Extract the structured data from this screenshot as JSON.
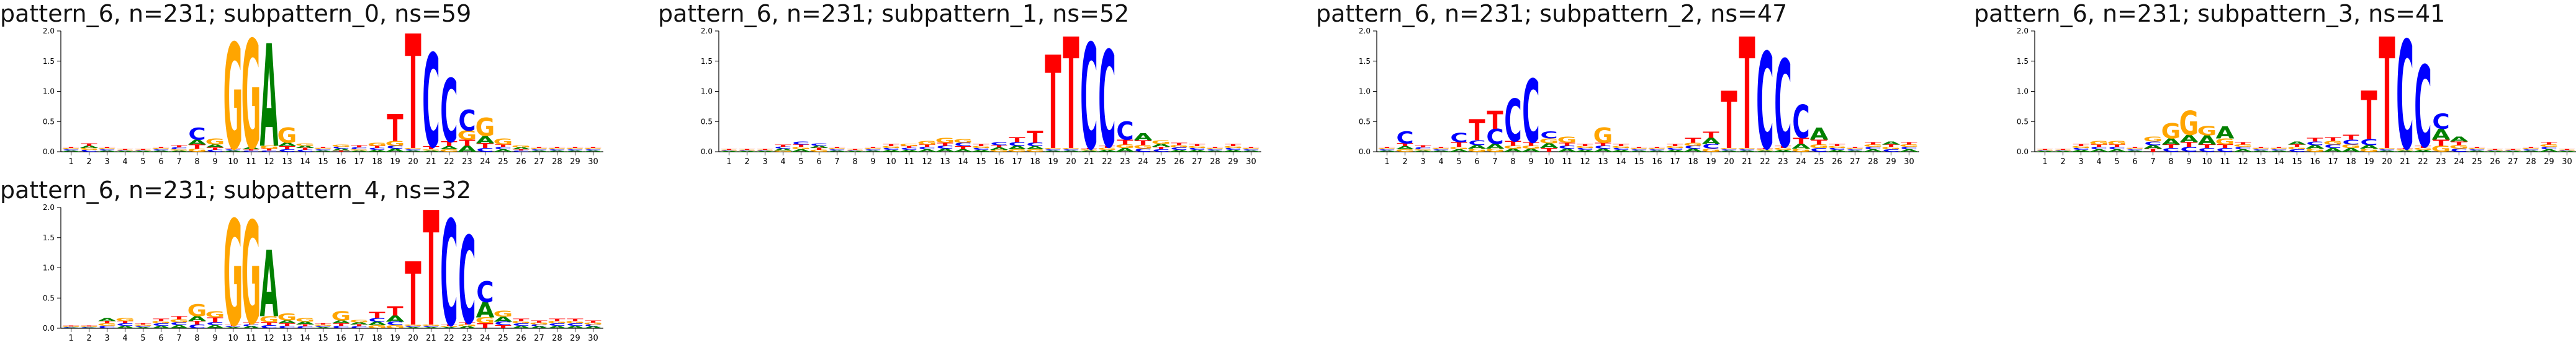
{
  "colors": {
    "A": "#008000",
    "C": "#0000ff",
    "G": "#ffa500",
    "T": "#ff0000"
  },
  "chart_data": [
    {
      "type": "sequence_logo",
      "title": "pattern_6, n=231; subpattern_0, ns=59",
      "ylim": [
        0,
        2.0
      ],
      "yticks": [
        "0.0",
        "0.5",
        "1.0",
        "1.5",
        "2.0"
      ],
      "xticks": [
        "1",
        "2",
        "3",
        "4",
        "5",
        "6",
        "7",
        "8",
        "9",
        "10",
        "11",
        "12",
        "13",
        "14",
        "15",
        "16",
        "17",
        "18",
        "19",
        "20",
        "21",
        "22",
        "23",
        "24",
        "25",
        "26",
        "27",
        "28",
        "29",
        "30"
      ],
      "positions": [
        {
          "A": 0.02,
          "C": 0.02,
          "G": 0.02,
          "T": 0.02
        },
        {
          "A": 0.04,
          "C": 0.03,
          "G": 0.03,
          "T": 0.04
        },
        {
          "A": 0.02,
          "C": 0.02,
          "G": 0.02,
          "T": 0.02
        },
        {
          "A": 0.01,
          "C": 0.01,
          "G": 0.01,
          "T": 0.01
        },
        {
          "A": 0.01,
          "C": 0.01,
          "G": 0.01,
          "T": 0.01
        },
        {
          "A": 0.02,
          "C": 0.02,
          "G": 0.02,
          "T": 0.02
        },
        {
          "A": 0.02,
          "C": 0.03,
          "G": 0.02,
          "T": 0.03
        },
        {
          "A": 0.08,
          "C": 0.2,
          "G": 0.05,
          "T": 0.07
        },
        {
          "A": 0.05,
          "C": 0.03,
          "G": 0.1,
          "T": 0.04
        },
        {
          "A": 0.02,
          "C": 0.02,
          "G": 1.75,
          "T": 0.02
        },
        {
          "A": 0.03,
          "C": 0.02,
          "G": 1.8,
          "T": 0.02
        },
        {
          "A": 1.7,
          "C": 0.02,
          "G": 0.05,
          "T": 0.03
        },
        {
          "A": 0.06,
          "C": 0.04,
          "G": 0.25,
          "T": 0.05
        },
        {
          "A": 0.04,
          "C": 0.03,
          "G": 0.04,
          "T": 0.03
        },
        {
          "A": 0.02,
          "C": 0.02,
          "G": 0.02,
          "T": 0.02
        },
        {
          "A": 0.03,
          "C": 0.03,
          "G": 0.03,
          "T": 0.02
        },
        {
          "A": 0.02,
          "C": 0.03,
          "G": 0.02,
          "T": 0.03
        },
        {
          "A": 0.03,
          "C": 0.03,
          "G": 0.05,
          "T": 0.04
        },
        {
          "A": 0.05,
          "C": 0.05,
          "G": 0.08,
          "T": 0.45
        },
        {
          "A": 0.02,
          "C": 0.02,
          "G": 0.02,
          "T": 1.9
        },
        {
          "A": 0.02,
          "C": 1.55,
          "G": 0.02,
          "T": 0.05
        },
        {
          "A": 0.05,
          "C": 1.05,
          "G": 0.04,
          "T": 0.08
        },
        {
          "A": 0.1,
          "C": 0.35,
          "G": 0.15,
          "T": 0.1
        },
        {
          "A": 0.12,
          "C": 0.06,
          "G": 0.3,
          "T": 0.08
        },
        {
          "A": 0.04,
          "C": 0.04,
          "G": 0.1,
          "T": 0.04
        },
        {
          "A": 0.03,
          "C": 0.02,
          "G": 0.03,
          "T": 0.02
        },
        {
          "A": 0.02,
          "C": 0.02,
          "G": 0.02,
          "T": 0.02
        },
        {
          "A": 0.02,
          "C": 0.02,
          "G": 0.02,
          "T": 0.02
        },
        {
          "A": 0.02,
          "C": 0.02,
          "G": 0.02,
          "T": 0.02
        },
        {
          "A": 0.02,
          "C": 0.02,
          "G": 0.02,
          "T": 0.02
        }
      ]
    },
    {
      "type": "sequence_logo",
      "title": "pattern_6, n=231; subpattern_1, ns=52",
      "ylim": [
        0,
        2.0
      ],
      "yticks": [
        "0.0",
        "0.5",
        "1.0",
        "1.5",
        "2.0"
      ],
      "xticks": [
        "1",
        "2",
        "3",
        "4",
        "5",
        "6",
        "7",
        "8",
        "9",
        "10",
        "11",
        "12",
        "13",
        "14",
        "15",
        "16",
        "17",
        "18",
        "19",
        "20",
        "21",
        "22",
        "23",
        "24",
        "25",
        "26",
        "27",
        "28",
        "29",
        "30"
      ],
      "positions": [
        {
          "A": 0.01,
          "C": 0.01,
          "G": 0.01,
          "T": 0.01
        },
        {
          "A": 0.01,
          "C": 0.01,
          "G": 0.01,
          "T": 0.01
        },
        {
          "A": 0.01,
          "C": 0.01,
          "G": 0.01,
          "T": 0.01
        },
        {
          "A": 0.03,
          "C": 0.03,
          "G": 0.02,
          "T": 0.03
        },
        {
          "A": 0.04,
          "C": 0.05,
          "G": 0.04,
          "T": 0.04
        },
        {
          "A": 0.04,
          "C": 0.04,
          "G": 0.03,
          "T": 0.03
        },
        {
          "A": 0.02,
          "C": 0.02,
          "G": 0.02,
          "T": 0.02
        },
        {
          "A": 0.01,
          "C": 0.01,
          "G": 0.01,
          "T": 0.01
        },
        {
          "A": 0.02,
          "C": 0.02,
          "G": 0.02,
          "T": 0.02
        },
        {
          "A": 0.03,
          "C": 0.03,
          "G": 0.03,
          "T": 0.03
        },
        {
          "A": 0.03,
          "C": 0.03,
          "G": 0.04,
          "T": 0.03
        },
        {
          "A": 0.04,
          "C": 0.04,
          "G": 0.06,
          "T": 0.04
        },
        {
          "A": 0.05,
          "C": 0.05,
          "G": 0.08,
          "T": 0.05
        },
        {
          "A": 0.04,
          "C": 0.06,
          "G": 0.06,
          "T": 0.05
        },
        {
          "A": 0.03,
          "C": 0.03,
          "G": 0.03,
          "T": 0.03
        },
        {
          "A": 0.04,
          "C": 0.05,
          "G": 0.03,
          "T": 0.04
        },
        {
          "A": 0.06,
          "C": 0.06,
          "G": 0.04,
          "T": 0.08
        },
        {
          "A": 0.05,
          "C": 0.06,
          "G": 0.04,
          "T": 0.2
        },
        {
          "A": 0.02,
          "C": 0.02,
          "G": 0.02,
          "T": 1.55
        },
        {
          "A": 0.02,
          "C": 0.02,
          "G": 0.02,
          "T": 1.85
        },
        {
          "A": 0.02,
          "C": 1.75,
          "G": 0.02,
          "T": 0.02
        },
        {
          "A": 0.03,
          "C": 1.6,
          "G": 0.03,
          "T": 0.03
        },
        {
          "A": 0.06,
          "C": 0.3,
          "G": 0.06,
          "T": 0.08
        },
        {
          "A": 0.12,
          "C": 0.05,
          "G": 0.06,
          "T": 0.08
        },
        {
          "A": 0.05,
          "C": 0.04,
          "G": 0.06,
          "T": 0.04
        },
        {
          "A": 0.03,
          "C": 0.04,
          "G": 0.04,
          "T": 0.04
        },
        {
          "A": 0.03,
          "C": 0.03,
          "G": 0.03,
          "T": 0.03
        },
        {
          "A": 0.02,
          "C": 0.02,
          "G": 0.02,
          "T": 0.02
        },
        {
          "A": 0.03,
          "C": 0.03,
          "G": 0.03,
          "T": 0.03
        },
        {
          "A": 0.02,
          "C": 0.02,
          "G": 0.02,
          "T": 0.02
        }
      ]
    },
    {
      "type": "sequence_logo",
      "title": "pattern_6, n=231; subpattern_2, ns=47",
      "ylim": [
        0,
        2.0
      ],
      "yticks": [
        "0.0",
        "0.5",
        "1.0",
        "1.5",
        "2.0"
      ],
      "xticks": [
        "1",
        "2",
        "3",
        "4",
        "5",
        "6",
        "7",
        "8",
        "9",
        "10",
        "11",
        "12",
        "13",
        "14",
        "15",
        "16",
        "17",
        "18",
        "19",
        "20",
        "21",
        "22",
        "23",
        "24",
        "25",
        "26",
        "27",
        "28",
        "29",
        "30"
      ],
      "positions": [
        {
          "A": 0.02,
          "C": 0.02,
          "G": 0.02,
          "T": 0.02
        },
        {
          "A": 0.05,
          "C": 0.2,
          "G": 0.04,
          "T": 0.05
        },
        {
          "A": 0.02,
          "C": 0.03,
          "G": 0.02,
          "T": 0.03
        },
        {
          "A": 0.02,
          "C": 0.02,
          "G": 0.02,
          "T": 0.02
        },
        {
          "A": 0.04,
          "C": 0.15,
          "G": 0.04,
          "T": 0.08
        },
        {
          "A": 0.06,
          "C": 0.08,
          "G": 0.05,
          "T": 0.35
        },
        {
          "A": 0.08,
          "C": 0.25,
          "G": 0.05,
          "T": 0.3
        },
        {
          "A": 0.05,
          "C": 0.7,
          "G": 0.05,
          "T": 0.08
        },
        {
          "A": 0.05,
          "C": 1.05,
          "G": 0.05,
          "T": 0.06
        },
        {
          "A": 0.08,
          "C": 0.12,
          "G": 0.08,
          "T": 0.06
        },
        {
          "A": 0.05,
          "C": 0.05,
          "G": 0.1,
          "T": 0.05
        },
        {
          "A": 0.03,
          "C": 0.03,
          "G": 0.03,
          "T": 0.03
        },
        {
          "A": 0.05,
          "C": 0.05,
          "G": 0.25,
          "T": 0.05
        },
        {
          "A": 0.03,
          "C": 0.03,
          "G": 0.03,
          "T": 0.03
        },
        {
          "A": 0.02,
          "C": 0.02,
          "G": 0.02,
          "T": 0.02
        },
        {
          "A": 0.02,
          "C": 0.02,
          "G": 0.02,
          "T": 0.02
        },
        {
          "A": 0.03,
          "C": 0.03,
          "G": 0.03,
          "T": 0.03
        },
        {
          "A": 0.05,
          "C": 0.05,
          "G": 0.05,
          "T": 0.08
        },
        {
          "A": 0.1,
          "C": 0.08,
          "G": 0.05,
          "T": 0.1
        },
        {
          "A": 0.02,
          "C": 0.02,
          "G": 0.02,
          "T": 0.95
        },
        {
          "A": 0.02,
          "C": 0.02,
          "G": 0.02,
          "T": 1.85
        },
        {
          "A": 0.02,
          "C": 1.6,
          "G": 0.02,
          "T": 0.02
        },
        {
          "A": 0.03,
          "C": 1.45,
          "G": 0.03,
          "T": 0.03
        },
        {
          "A": 0.08,
          "C": 0.55,
          "G": 0.05,
          "T": 0.1
        },
        {
          "A": 0.2,
          "C": 0.06,
          "G": 0.06,
          "T": 0.08
        },
        {
          "A": 0.03,
          "C": 0.03,
          "G": 0.03,
          "T": 0.03
        },
        {
          "A": 0.02,
          "C": 0.02,
          "G": 0.02,
          "T": 0.02
        },
        {
          "A": 0.04,
          "C": 0.04,
          "G": 0.04,
          "T": 0.04
        },
        {
          "A": 0.05,
          "C": 0.04,
          "G": 0.04,
          "T": 0.04
        },
        {
          "A": 0.04,
          "C": 0.04,
          "G": 0.04,
          "T": 0.04
        }
      ]
    },
    {
      "type": "sequence_logo",
      "title": "pattern_6, n=231; subpattern_3, ns=41",
      "ylim": [
        0,
        2.0
      ],
      "yticks": [
        "0.0",
        "0.5",
        "1.0",
        "1.5",
        "2.0"
      ],
      "xticks": [
        "1",
        "2",
        "3",
        "4",
        "5",
        "6",
        "7",
        "8",
        "9",
        "10",
        "11",
        "12",
        "13",
        "14",
        "15",
        "16",
        "17",
        "18",
        "19",
        "20",
        "21",
        "22",
        "23",
        "24",
        "25",
        "26",
        "27",
        "28",
        "29",
        "30"
      ],
      "positions": [
        {
          "A": 0.01,
          "C": 0.01,
          "G": 0.01,
          "T": 0.01
        },
        {
          "A": 0.01,
          "C": 0.01,
          "G": 0.01,
          "T": 0.01
        },
        {
          "A": 0.03,
          "C": 0.03,
          "G": 0.03,
          "T": 0.03
        },
        {
          "A": 0.04,
          "C": 0.04,
          "G": 0.06,
          "T": 0.04
        },
        {
          "A": 0.04,
          "C": 0.04,
          "G": 0.06,
          "T": 0.04
        },
        {
          "A": 0.02,
          "C": 0.02,
          "G": 0.02,
          "T": 0.02
        },
        {
          "A": 0.06,
          "C": 0.06,
          "G": 0.08,
          "T": 0.05
        },
        {
          "A": 0.1,
          "C": 0.06,
          "G": 0.25,
          "T": 0.06
        },
        {
          "A": 0.12,
          "C": 0.08,
          "G": 0.4,
          "T": 0.08
        },
        {
          "A": 0.15,
          "C": 0.06,
          "G": 0.15,
          "T": 0.06
        },
        {
          "A": 0.2,
          "C": 0.06,
          "G": 0.1,
          "T": 0.06
        },
        {
          "A": 0.04,
          "C": 0.04,
          "G": 0.04,
          "T": 0.04
        },
        {
          "A": 0.02,
          "C": 0.02,
          "G": 0.02,
          "T": 0.02
        },
        {
          "A": 0.02,
          "C": 0.02,
          "G": 0.02,
          "T": 0.02
        },
        {
          "A": 0.05,
          "C": 0.04,
          "G": 0.04,
          "T": 0.04
        },
        {
          "A": 0.06,
          "C": 0.06,
          "G": 0.05,
          "T": 0.06
        },
        {
          "A": 0.06,
          "C": 0.06,
          "G": 0.06,
          "T": 0.06
        },
        {
          "A": 0.06,
          "C": 0.08,
          "G": 0.06,
          "T": 0.08
        },
        {
          "A": 0.06,
          "C": 0.1,
          "G": 0.05,
          "T": 0.8
        },
        {
          "A": 0.02,
          "C": 0.02,
          "G": 0.02,
          "T": 1.85
        },
        {
          "A": 0.02,
          "C": 1.8,
          "G": 0.02,
          "T": 0.02
        },
        {
          "A": 0.03,
          "C": 1.35,
          "G": 0.03,
          "T": 0.03
        },
        {
          "A": 0.18,
          "C": 0.25,
          "G": 0.1,
          "T": 0.1
        },
        {
          "A": 0.08,
          "C": 0.05,
          "G": 0.06,
          "T": 0.06
        },
        {
          "A": 0.02,
          "C": 0.02,
          "G": 0.02,
          "T": 0.02
        },
        {
          "A": 0.01,
          "C": 0.01,
          "G": 0.01,
          "T": 0.01
        },
        {
          "A": 0.01,
          "C": 0.01,
          "G": 0.01,
          "T": 0.01
        },
        {
          "A": 0.02,
          "C": 0.02,
          "G": 0.02,
          "T": 0.02
        },
        {
          "A": 0.04,
          "C": 0.04,
          "G": 0.04,
          "T": 0.04
        },
        {
          "A": 0.01,
          "C": 0.01,
          "G": 0.01,
          "T": 0.01
        }
      ]
    },
    {
      "type": "sequence_logo",
      "title": "pattern_6, n=231; subpattern_4, ns=32",
      "ylim": [
        0,
        2.0
      ],
      "yticks": [
        "0.0",
        "0.5",
        "1.0",
        "1.5",
        "2.0"
      ],
      "xticks": [
        "1",
        "2",
        "3",
        "4",
        "5",
        "6",
        "7",
        "8",
        "9",
        "10",
        "11",
        "12",
        "13",
        "14",
        "15",
        "16",
        "17",
        "18",
        "19",
        "20",
        "21",
        "22",
        "23",
        "24",
        "25",
        "26",
        "27",
        "28",
        "29",
        "30"
      ],
      "positions": [
        {
          "A": 0.01,
          "C": 0.01,
          "G": 0.01,
          "T": 0.01
        },
        {
          "A": 0.01,
          "C": 0.01,
          "G": 0.01,
          "T": 0.01
        },
        {
          "A": 0.05,
          "C": 0.04,
          "G": 0.04,
          "T": 0.04
        },
        {
          "A": 0.04,
          "C": 0.04,
          "G": 0.05,
          "T": 0.04
        },
        {
          "A": 0.02,
          "C": 0.02,
          "G": 0.02,
          "T": 0.02
        },
        {
          "A": 0.04,
          "C": 0.04,
          "G": 0.04,
          "T": 0.04
        },
        {
          "A": 0.05,
          "C": 0.05,
          "G": 0.05,
          "T": 0.05
        },
        {
          "A": 0.08,
          "C": 0.06,
          "G": 0.2,
          "T": 0.06
        },
        {
          "A": 0.05,
          "C": 0.05,
          "G": 0.1,
          "T": 0.08
        },
        {
          "A": 0.02,
          "C": 0.02,
          "G": 1.75,
          "T": 0.02
        },
        {
          "A": 0.03,
          "C": 0.03,
          "G": 1.7,
          "T": 0.03
        },
        {
          "A": 1.1,
          "C": 0.05,
          "G": 0.1,
          "T": 0.05
        },
        {
          "A": 0.05,
          "C": 0.04,
          "G": 0.12,
          "T": 0.04
        },
        {
          "A": 0.05,
          "C": 0.03,
          "G": 0.06,
          "T": 0.03
        },
        {
          "A": 0.02,
          "C": 0.02,
          "G": 0.02,
          "T": 0.02
        },
        {
          "A": 0.05,
          "C": 0.04,
          "G": 0.15,
          "T": 0.04
        },
        {
          "A": 0.04,
          "C": 0.03,
          "G": 0.04,
          "T": 0.03
        },
        {
          "A": 0.06,
          "C": 0.06,
          "G": 0.05,
          "T": 0.1
        },
        {
          "A": 0.1,
          "C": 0.06,
          "G": 0.05,
          "T": 0.15
        },
        {
          "A": 0.02,
          "C": 0.02,
          "G": 0.02,
          "T": 1.05
        },
        {
          "A": 0.02,
          "C": 0.02,
          "G": 0.02,
          "T": 1.9
        },
        {
          "A": 0.02,
          "C": 1.75,
          "G": 0.02,
          "T": 0.02
        },
        {
          "A": 0.03,
          "C": 1.45,
          "G": 0.03,
          "T": 0.03
        },
        {
          "A": 0.25,
          "C": 0.35,
          "G": 0.1,
          "T": 0.08
        },
        {
          "A": 0.08,
          "C": 0.06,
          "G": 0.1,
          "T": 0.05
        },
        {
          "A": 0.04,
          "C": 0.04,
          "G": 0.04,
          "T": 0.04
        },
        {
          "A": 0.03,
          "C": 0.03,
          "G": 0.03,
          "T": 0.03
        },
        {
          "A": 0.04,
          "C": 0.04,
          "G": 0.04,
          "T": 0.04
        },
        {
          "A": 0.04,
          "C": 0.04,
          "G": 0.04,
          "T": 0.04
        },
        {
          "A": 0.03,
          "C": 0.03,
          "G": 0.03,
          "T": 0.03
        }
      ]
    }
  ]
}
